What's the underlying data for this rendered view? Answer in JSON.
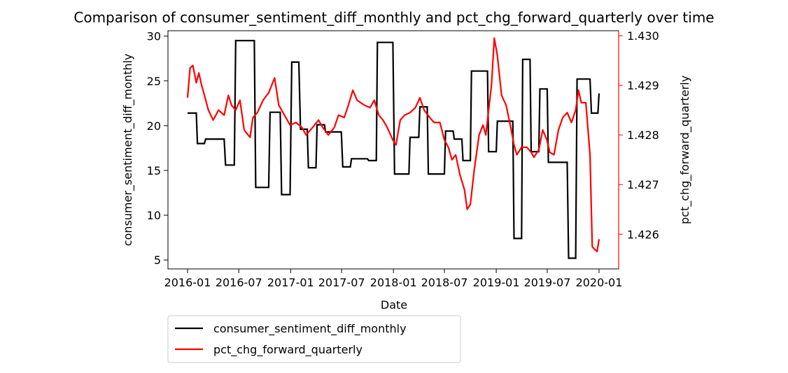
{
  "chart_data": {
    "type": "line",
    "title": "Comparison of consumer_sentiment_diff_monthly and pct_chg_forward_quarterly over time",
    "xlabel": "Date",
    "ylabel": "consumer_sentiment_diff_monthly",
    "y2label": "pct_chg_forward_quarterly",
    "x_ticks": [
      "2016-01",
      "2016-07",
      "2017-01",
      "2017-07",
      "2018-01",
      "2018-07",
      "2019-01",
      "2019-07",
      "2020-01"
    ],
    "x_range": [
      "2016-01-01",
      "2020-01-01"
    ],
    "ylim": [
      4,
      30.6
    ],
    "y_ticks": [
      5,
      10,
      15,
      20,
      25,
      30
    ],
    "y2lim": [
      1.4253,
      1.4301
    ],
    "y2_ticks": [
      1.426,
      1.427,
      1.428,
      1.429,
      1.43
    ],
    "y2_tick_labels": [
      "1.426",
      "1.427",
      "1.428",
      "1.429",
      "1.430"
    ],
    "grid": false,
    "legend_position": "below-left",
    "legend": [
      "consumer_sentiment_diff_monthly",
      "pct_chg_forward_quarterly"
    ],
    "colors": {
      "primary": "#000000",
      "secondary": "#ff0000"
    },
    "series": [
      {
        "name": "consumer_sentiment_diff_monthly",
        "axis": "left",
        "color": "#000000",
        "points": [
          [
            "2016-01-01",
            21.4
          ],
          [
            "2016-02-01",
            21.4
          ],
          [
            "2016-02-05",
            18.0
          ],
          [
            "2016-03-01",
            18.0
          ],
          [
            "2016-03-05",
            18.5
          ],
          [
            "2016-05-10",
            18.5
          ],
          [
            "2016-05-15",
            15.6
          ],
          [
            "2016-06-15",
            15.6
          ],
          [
            "2016-06-20",
            29.5
          ],
          [
            "2016-08-25",
            29.5
          ],
          [
            "2016-08-30",
            13.1
          ],
          [
            "2016-10-15",
            13.1
          ],
          [
            "2016-10-20",
            21.5
          ],
          [
            "2016-11-25",
            21.5
          ],
          [
            "2016-11-30",
            12.3
          ],
          [
            "2016-12-30",
            12.3
          ],
          [
            "2017-01-05",
            27.1
          ],
          [
            "2017-01-30",
            27.1
          ],
          [
            "2017-02-05",
            19.6
          ],
          [
            "2017-03-01",
            19.6
          ],
          [
            "2017-03-05",
            15.3
          ],
          [
            "2017-04-01",
            15.3
          ],
          [
            "2017-04-05",
            20.1
          ],
          [
            "2017-05-01",
            20.1
          ],
          [
            "2017-05-05",
            19.3
          ],
          [
            "2017-06-30",
            19.3
          ],
          [
            "2017-07-05",
            15.4
          ],
          [
            "2017-08-01",
            15.4
          ],
          [
            "2017-08-05",
            16.3
          ],
          [
            "2017-10-01",
            16.3
          ],
          [
            "2017-10-05",
            16.1
          ],
          [
            "2017-11-01",
            16.1
          ],
          [
            "2017-11-05",
            29.3
          ],
          [
            "2017-12-30",
            29.3
          ],
          [
            "2018-01-05",
            14.6
          ],
          [
            "2018-02-25",
            14.6
          ],
          [
            "2018-03-01",
            18.7
          ],
          [
            "2018-04-01",
            18.7
          ],
          [
            "2018-04-05",
            22.1
          ],
          [
            "2018-05-01",
            22.1
          ],
          [
            "2018-05-05",
            14.6
          ],
          [
            "2018-07-01",
            14.6
          ],
          [
            "2018-07-05",
            19.4
          ],
          [
            "2018-08-01",
            19.4
          ],
          [
            "2018-08-05",
            18.5
          ],
          [
            "2018-09-01",
            18.5
          ],
          [
            "2018-09-05",
            16.1
          ],
          [
            "2018-10-01",
            16.1
          ],
          [
            "2018-10-05",
            26.1
          ],
          [
            "2018-12-01",
            26.1
          ],
          [
            "2018-12-05",
            17.1
          ],
          [
            "2019-01-01",
            17.1
          ],
          [
            "2019-01-05",
            20.5
          ],
          [
            "2019-03-01",
            20.5
          ],
          [
            "2019-03-05",
            7.4
          ],
          [
            "2019-04-01",
            7.4
          ],
          [
            "2019-04-05",
            27.4
          ],
          [
            "2019-05-01",
            27.4
          ],
          [
            "2019-05-05",
            17.1
          ],
          [
            "2019-06-01",
            17.1
          ],
          [
            "2019-06-05",
            24.1
          ],
          [
            "2019-07-01",
            24.1
          ],
          [
            "2019-07-05",
            15.9
          ],
          [
            "2019-09-10",
            15.9
          ],
          [
            "2019-09-15",
            5.2
          ],
          [
            "2019-10-10",
            5.2
          ],
          [
            "2019-10-15",
            25.2
          ],
          [
            "2019-11-30",
            25.2
          ],
          [
            "2019-12-05",
            21.4
          ],
          [
            "2019-12-28",
            21.4
          ],
          [
            "2020-01-01",
            23.6
          ]
        ]
      },
      {
        "name": "pct_chg_forward_quarterly",
        "axis": "right",
        "color": "#ff0000",
        "points": [
          [
            "2016-01-01",
            1.42875
          ],
          [
            "2016-01-10",
            1.42935
          ],
          [
            "2016-01-20",
            1.4294
          ],
          [
            "2016-02-01",
            1.42905
          ],
          [
            "2016-02-10",
            1.42925
          ],
          [
            "2016-02-20",
            1.429
          ],
          [
            "2016-03-01",
            1.4288
          ],
          [
            "2016-03-15",
            1.4285
          ],
          [
            "2016-04-01",
            1.4283
          ],
          [
            "2016-04-20",
            1.4285
          ],
          [
            "2016-05-10",
            1.4284
          ],
          [
            "2016-05-25",
            1.4288
          ],
          [
            "2016-06-05",
            1.4286
          ],
          [
            "2016-06-20",
            1.4285
          ],
          [
            "2016-07-05",
            1.4287
          ],
          [
            "2016-07-20",
            1.4281
          ],
          [
            "2016-08-10",
            1.42795
          ],
          [
            "2016-08-20",
            1.42835
          ],
          [
            "2016-09-05",
            1.42845
          ],
          [
            "2016-09-25",
            1.4287
          ],
          [
            "2016-10-15",
            1.42885
          ],
          [
            "2016-11-05",
            1.42915
          ],
          [
            "2016-11-20",
            1.4286
          ],
          [
            "2016-12-10",
            1.4284
          ],
          [
            "2016-12-30",
            1.4282
          ],
          [
            "2017-01-20",
            1.42825
          ],
          [
            "2017-02-10",
            1.42815
          ],
          [
            "2017-02-25",
            1.428
          ],
          [
            "2017-03-20",
            1.42815
          ],
          [
            "2017-04-10",
            1.4283
          ],
          [
            "2017-04-25",
            1.42815
          ],
          [
            "2017-05-15",
            1.428
          ],
          [
            "2017-06-05",
            1.42815
          ],
          [
            "2017-06-20",
            1.4284
          ],
          [
            "2017-07-10",
            1.42835
          ],
          [
            "2017-07-25",
            1.4286
          ],
          [
            "2017-08-10",
            1.4289
          ],
          [
            "2017-08-25",
            1.4287
          ],
          [
            "2017-09-20",
            1.4286
          ],
          [
            "2017-10-10",
            1.42855
          ],
          [
            "2017-10-25",
            1.4287
          ],
          [
            "2017-11-10",
            1.4284
          ],
          [
            "2017-11-25",
            1.4283
          ],
          [
            "2017-12-10",
            1.42815
          ],
          [
            "2017-12-30",
            1.4279
          ],
          [
            "2018-01-10",
            1.4278
          ],
          [
            "2018-01-25",
            1.4283
          ],
          [
            "2018-02-10",
            1.4284
          ],
          [
            "2018-03-01",
            1.42845
          ],
          [
            "2018-03-20",
            1.42855
          ],
          [
            "2018-04-05",
            1.42875
          ],
          [
            "2018-04-20",
            1.4285
          ],
          [
            "2018-05-10",
            1.42835
          ],
          [
            "2018-05-25",
            1.42825
          ],
          [
            "2018-06-15",
            1.42825
          ],
          [
            "2018-07-01",
            1.4279
          ],
          [
            "2018-07-15",
            1.42775
          ],
          [
            "2018-07-28",
            1.4275
          ],
          [
            "2018-08-10",
            1.4276
          ],
          [
            "2018-08-25",
            1.4272
          ],
          [
            "2018-09-10",
            1.4269
          ],
          [
            "2018-09-20",
            1.4265
          ],
          [
            "2018-10-01",
            1.4266
          ],
          [
            "2018-10-15",
            1.4273
          ],
          [
            "2018-11-01",
            1.428
          ],
          [
            "2018-11-15",
            1.4282
          ],
          [
            "2018-11-25",
            1.428
          ],
          [
            "2018-12-05",
            1.4285
          ],
          [
            "2018-12-15",
            1.429
          ],
          [
            "2018-12-25",
            1.42995
          ],
          [
            "2019-01-05",
            1.4296
          ],
          [
            "2019-01-20",
            1.4288
          ],
          [
            "2019-02-05",
            1.4286
          ],
          [
            "2019-02-20",
            1.4282
          ],
          [
            "2019-03-05",
            1.4278
          ],
          [
            "2019-03-15",
            1.4276
          ],
          [
            "2019-04-01",
            1.42775
          ],
          [
            "2019-04-20",
            1.42775
          ],
          [
            "2019-05-05",
            1.42765
          ],
          [
            "2019-05-15",
            1.42755
          ],
          [
            "2019-06-01",
            1.4277
          ],
          [
            "2019-06-15",
            1.4281
          ],
          [
            "2019-06-30",
            1.4279
          ],
          [
            "2019-07-10",
            1.42765
          ],
          [
            "2019-07-25",
            1.4276
          ],
          [
            "2019-08-10",
            1.4281
          ],
          [
            "2019-08-25",
            1.42835
          ],
          [
            "2019-09-10",
            1.42845
          ],
          [
            "2019-09-25",
            1.42825
          ],
          [
            "2019-10-10",
            1.4285
          ],
          [
            "2019-10-20",
            1.4289
          ],
          [
            "2019-10-30",
            1.42865
          ],
          [
            "2019-11-15",
            1.42865
          ],
          [
            "2019-11-30",
            1.4276
          ],
          [
            "2019-12-08",
            1.42575
          ],
          [
            "2019-12-15",
            1.4257
          ],
          [
            "2019-12-25",
            1.42565
          ],
          [
            "2020-01-01",
            1.4259
          ]
        ]
      }
    ]
  }
}
